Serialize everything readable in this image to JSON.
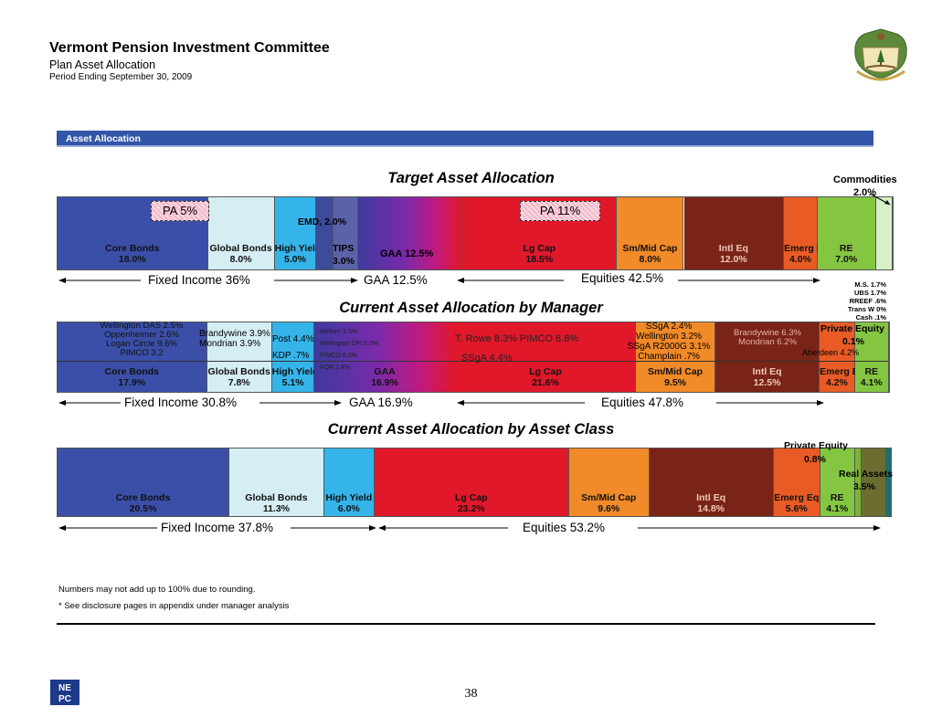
{
  "header": {
    "title": "Vermont Pension Investment Committee",
    "subtitle": "Plan Asset Allocation",
    "period": "Period Ending September 30, 2009"
  },
  "section_title": "Asset Allocation",
  "colors": {
    "core_bonds": "#3b4fa8",
    "global_bonds": "#d5eef4",
    "high_yield": "#35b4ea",
    "emd": "#3e4a9a",
    "tips": "#5b63a8",
    "gaa_start": "#3e3a9e",
    "gaa_end": "#e0182a",
    "lg_cap": "#e0182a",
    "sm_mid_cap": "#f18a28",
    "intl_eq": "#7a2418",
    "emerg_eq": "#e85b25",
    "re": "#84c642",
    "commodities": "#d7f0c8",
    "private_equity": "#7ab530",
    "real_assets": "#6b6e30",
    "cash": "#1e6e70"
  },
  "chart_data": [
    {
      "type": "bar",
      "title": "Target Asset Allocation",
      "segments": [
        {
          "name": "Core Bonds",
          "value": 18.0,
          "label": "18.0%",
          "color": "core_bonds"
        },
        {
          "name": "Global Bonds",
          "value": 8.0,
          "label": "8.0%",
          "color": "global_bonds"
        },
        {
          "name": "High Yield",
          "value": 5.0,
          "label": "5.0%",
          "color": "high_yield"
        },
        {
          "name": "EMD",
          "value": 2.0,
          "label": "2.0%",
          "color": "emd"
        },
        {
          "name": "TIPS",
          "value": 3.0,
          "label": "3.0%",
          "color": "tips"
        },
        {
          "name": "GAA",
          "value": 12.5,
          "label": "12.5%",
          "color": "gaa"
        },
        {
          "name": "Lg Cap",
          "value": 18.5,
          "label": "18.5%",
          "color": "lg_cap"
        },
        {
          "name": "Sm/Mid Cap",
          "value": 8.0,
          "label": "8.0%",
          "color": "sm_mid_cap"
        },
        {
          "name": "Intl Eq",
          "value": 12.0,
          "label": "12.0%",
          "color": "intl_eq"
        },
        {
          "name": "Emerg Eq",
          "value": 4.0,
          "label": "4.0%",
          "color": "emerg_eq"
        },
        {
          "name": "RE",
          "value": 7.0,
          "label": "7.0%",
          "color": "re"
        },
        {
          "name": "Commodities",
          "value": 2.0,
          "label": "2.0%",
          "color": "commodities"
        }
      ],
      "annotations": {
        "pa_bonds": "PA 5%",
        "pa_equity": "PA 11%",
        "emd_text": "EMD, 2.0%",
        "tips_name": "TIPS",
        "tips_value": "3.0%",
        "gaa_text": "GAA 12.5%",
        "commodities_name": "Commodities",
        "commodities_value": "2.0%"
      },
      "spans": [
        {
          "label": "Fixed Income 36%"
        },
        {
          "label": "GAA 12.5%"
        },
        {
          "label": "Equities 42.5%"
        }
      ]
    },
    {
      "type": "bar",
      "title": "Current Asset Allocation by Manager",
      "segments": [
        {
          "name": "Core Bonds",
          "value": 17.9,
          "label": "17.9%"
        },
        {
          "name": "Global Bonds",
          "value": 7.8,
          "label": "7.8%"
        },
        {
          "name": "High Yield",
          "value": 5.1,
          "label": "5.1%"
        },
        {
          "name": "GAA",
          "value": 16.9,
          "label": "16.9%"
        },
        {
          "name": "Lg Cap",
          "value": 21.6,
          "label": "21.6%"
        },
        {
          "name": "Sm/Mid Cap",
          "value": 9.5,
          "label": "9.5%"
        },
        {
          "name": "Intl Eq",
          "value": 12.5,
          "label": "12.5%"
        },
        {
          "name": "Emerg Eq",
          "value": 4.2,
          "label": "4.2%"
        },
        {
          "name": "RE",
          "value": 4.1,
          "label": "4.1%"
        }
      ],
      "managers": {
        "core_bonds": [
          "Wellington DAS  2.5%",
          "Oppenheimer  2.6%",
          "Logan Circle  9.6%",
          "PIMCO  3.2"
        ],
        "global_bonds": [
          "Brandywine  3.9%",
          "Mondrian  3.9%"
        ],
        "high_yield": [
          "Post 4.4%",
          "KDP .7%"
        ],
        "gaa": [
          "Mellon*  3.5%",
          "Wellington OFI  5.0%",
          "PIMCO  6.0%",
          "AQR  2.4%"
        ],
        "lg_cap": [
          "T. Rowe  8.3% PIMCO  8.8%",
          "SSgA  4.4%"
        ],
        "sm_mid_cap": [
          "SSgA   2.4%",
          "Wellington  3.2%",
          "SSgA R2000G  3.1%",
          "Champlain  .7%"
        ],
        "intl_eq": [
          "Brandywine  6.3%",
          "Mondrian  6.2%"
        ],
        "private_equity": [
          "Private Equity",
          "0.1%",
          "Aberdeen  4.2%"
        ]
      },
      "re_detail": [
        "M.S.  1.7%",
        "UBS  1.7%",
        "RREEF  .6%",
        "Trans W  0%",
        "Cash  .1%"
      ],
      "spans": [
        {
          "label": "Fixed Income 30.8%"
        },
        {
          "label": "GAA 16.9%"
        },
        {
          "label": "Equities 47.8%"
        }
      ]
    },
    {
      "type": "bar",
      "title": "Current Asset Allocation by Asset Class",
      "segments": [
        {
          "name": "Core Bonds",
          "value": 20.5,
          "label": "20.5%"
        },
        {
          "name": "Global Bonds",
          "value": 11.3,
          "label": "11.3%"
        },
        {
          "name": "High Yield",
          "value": 6.0,
          "label": "6.0%"
        },
        {
          "name": "Lg Cap",
          "value": 23.2,
          "label": "23.2%"
        },
        {
          "name": "Sm/Mid Cap",
          "value": 9.6,
          "label": "9.6%"
        },
        {
          "name": "Intl Eq",
          "value": 14.8,
          "label": "14.8%"
        },
        {
          "name": "Emerg Eq",
          "value": 5.6,
          "label": "5.6%"
        },
        {
          "name": "RE",
          "value": 4.1,
          "label": "4.1%"
        },
        {
          "name": "Private Equity",
          "value": 0.8,
          "label": "0.8%"
        },
        {
          "name": "Real Assets",
          "value": 3.5,
          "label": "3.5%"
        }
      ],
      "spans": [
        {
          "label": "Fixed Income 37.8%"
        },
        {
          "label": "Equities 53.2%"
        }
      ]
    }
  ],
  "notes": [
    "Numbers may not add up to 100% due to rounding.",
    "* See disclosure pages in appendix under manager analysis"
  ],
  "page_number": "38",
  "logo_text": "NEPC"
}
